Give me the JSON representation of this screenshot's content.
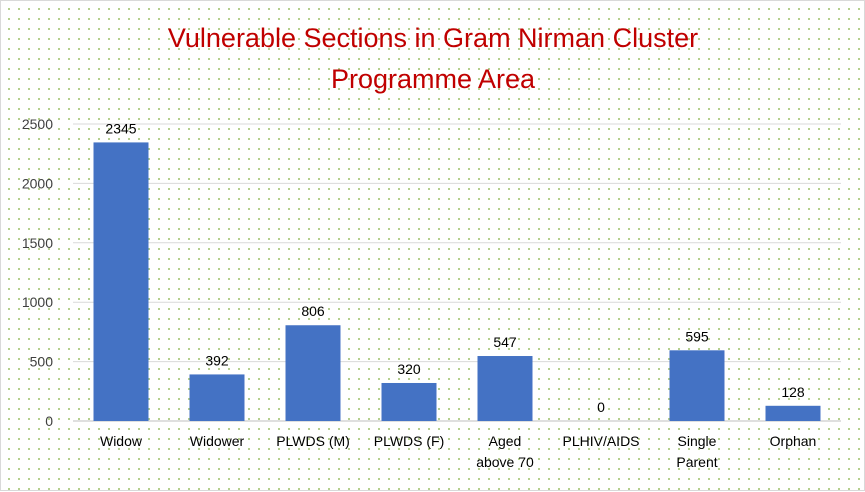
{
  "chart_data": {
    "type": "bar",
    "title": [
      "Vulnerable Sections in Gram Nirman Cluster",
      "Programme Area"
    ],
    "categories": [
      [
        "Widow"
      ],
      [
        "Widower"
      ],
      [
        "PLWDS (M)"
      ],
      [
        "PLWDS (F)"
      ],
      [
        "Aged",
        "above 70"
      ],
      [
        "PLHIV/AIDS"
      ],
      [
        "Single",
        "Parent"
      ],
      [
        "Orphan"
      ]
    ],
    "values": [
      2345,
      392,
      806,
      320,
      547,
      0,
      595,
      128
    ],
    "data_labels": [
      "2345",
      "392",
      "806",
      "320",
      "547",
      "0",
      "595",
      "128"
    ],
    "yticks": [
      0,
      500,
      1000,
      1500,
      2000,
      2500
    ],
    "ylim": [
      0,
      2500
    ],
    "xlabel": "",
    "ylabel": "",
    "grid": true,
    "legend": "none",
    "bar_color": "#4472c4",
    "title_color": "#c00000"
  }
}
